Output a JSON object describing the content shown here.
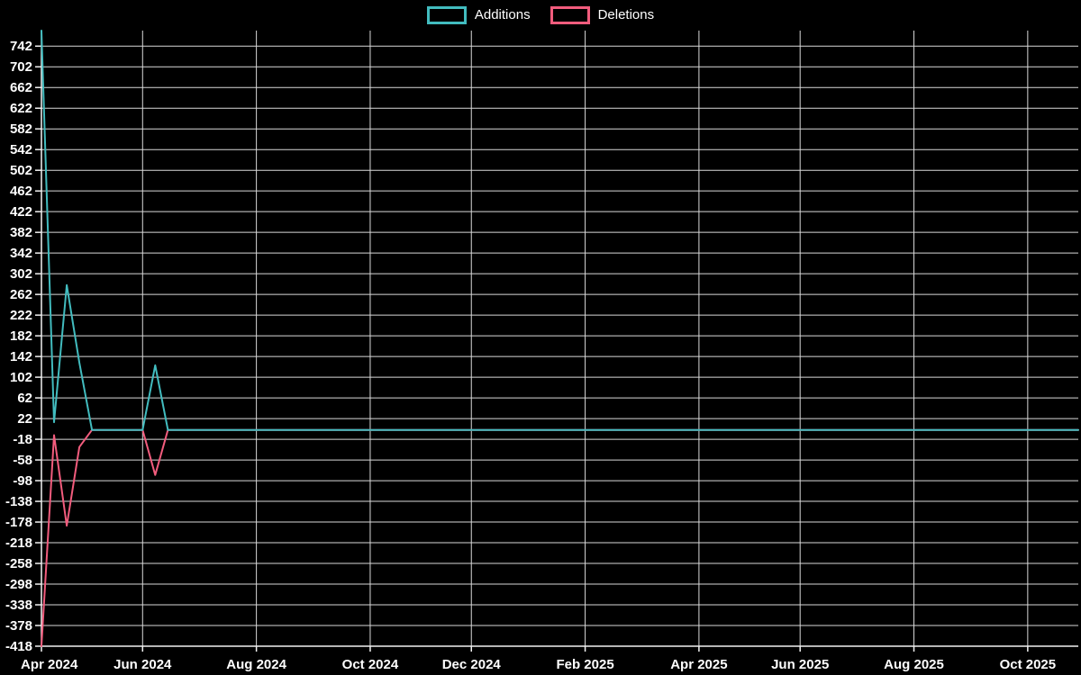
{
  "page": {
    "background": "#000000",
    "text_color": "#ffffff",
    "grid_color": "#d9d9d9",
    "axis_color": "#f2f2f2"
  },
  "chart_data": {
    "type": "line",
    "title": "",
    "xlabel": "",
    "ylabel": "",
    "legend_position": "top-center",
    "grid": true,
    "x_unit": "weeks",
    "num_weeks": 83,
    "x_tick_labels": [
      "Apr 2024",
      "Jun 2024",
      "Aug 2024",
      "Oct 2024",
      "Dec 2024",
      "Feb 2025",
      "Apr 2025",
      "Jun 2025",
      "Aug 2025",
      "Oct 2025"
    ],
    "x_tick_week_indices": [
      0,
      8,
      17,
      26,
      34,
      43,
      52,
      60,
      69,
      78
    ],
    "y_ticks": [
      -418,
      -378,
      -338,
      -298,
      -258,
      -218,
      -178,
      -138,
      -98,
      -58,
      -18,
      22,
      62,
      102,
      142,
      182,
      222,
      262,
      302,
      342,
      382,
      422,
      462,
      502,
      542,
      582,
      622,
      662,
      702,
      742
    ],
    "y_domain": [
      -418,
      772
    ],
    "series": [
      {
        "name": "Deletions",
        "color": "#f25c7d",
        "values": [
          -418,
          -10,
          -185,
          -33,
          0,
          0,
          0,
          0,
          0,
          -87,
          0,
          0,
          0,
          0,
          0,
          0,
          0,
          0,
          0,
          0,
          0,
          0,
          0,
          0,
          0,
          0,
          0,
          0,
          0,
          0,
          0,
          0,
          0,
          0,
          0,
          0,
          0,
          0,
          0,
          0,
          0,
          0,
          0,
          0,
          0,
          0,
          0,
          0,
          0,
          0,
          0,
          0,
          0,
          0,
          0,
          0,
          0,
          0,
          0,
          0,
          0,
          0,
          0,
          0,
          0,
          0,
          0,
          0,
          0,
          0,
          0,
          0,
          0,
          0,
          0,
          0,
          0,
          0,
          0,
          0,
          0,
          0,
          0
        ]
      },
      {
        "name": "Additions",
        "color": "#42bcbf",
        "values": [
          772,
          15,
          280,
          130,
          0,
          0,
          0,
          0,
          0,
          125,
          0,
          0,
          0,
          0,
          0,
          0,
          0,
          0,
          0,
          0,
          0,
          0,
          0,
          0,
          0,
          0,
          0,
          0,
          0,
          0,
          0,
          0,
          0,
          0,
          0,
          0,
          0,
          0,
          0,
          0,
          0,
          0,
          0,
          0,
          0,
          0,
          0,
          0,
          0,
          0,
          0,
          0,
          0,
          0,
          0,
          0,
          0,
          0,
          0,
          0,
          0,
          0,
          0,
          0,
          0,
          0,
          0,
          0,
          0,
          0,
          0,
          0,
          0,
          0,
          0,
          0,
          0,
          0,
          0,
          0,
          0,
          0,
          0
        ]
      }
    ],
    "legend_order": [
      "Additions",
      "Deletions"
    ]
  }
}
